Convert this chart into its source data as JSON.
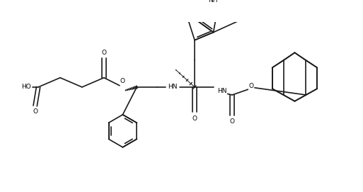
{
  "background": "#ffffff",
  "line_color": "#1a1a1a",
  "line_width": 1.2,
  "fig_width": 5.13,
  "fig_height": 2.71,
  "dpi": 100,
  "xlim": [
    0,
    10.26
  ],
  "ylim": [
    0,
    5.42
  ]
}
